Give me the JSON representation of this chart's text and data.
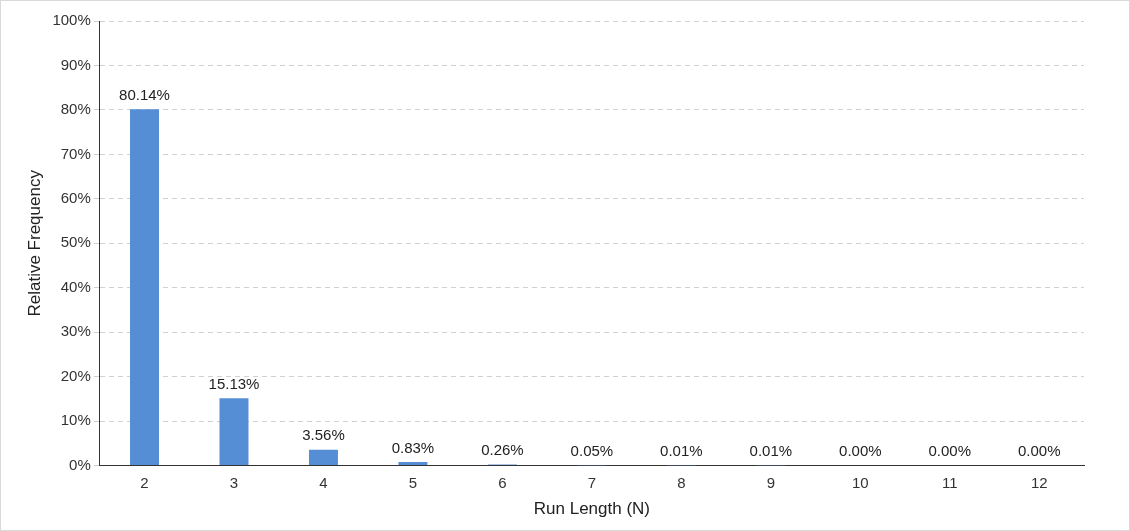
{
  "chart_data": {
    "type": "bar",
    "xlabel": "Run Length (N)",
    "ylabel": "Relative Frequency",
    "categories": [
      "2",
      "3",
      "4",
      "5",
      "6",
      "7",
      "8",
      "9",
      "10",
      "11",
      "12"
    ],
    "values": [
      80.14,
      15.13,
      3.56,
      0.83,
      0.26,
      0.05,
      0.01,
      0.01,
      0,
      0,
      0
    ],
    "value_labels": [
      "80.14%",
      "15.13%",
      "3.56%",
      "0.83%",
      "0.26%",
      "0.05%",
      "0.01%",
      "0.01%",
      "0.00%",
      "0.00%",
      "0.00%"
    ],
    "color": "#558ed5",
    "ylim": [
      0,
      100
    ],
    "yticks": [
      {
        "value": 0,
        "label": "0%"
      },
      {
        "value": 10,
        "label": "10%"
      },
      {
        "value": 20,
        "label": "20%"
      },
      {
        "value": 30,
        "label": "30%"
      },
      {
        "value": 40,
        "label": "40%"
      },
      {
        "value": 50,
        "label": "50%"
      },
      {
        "value": 60,
        "label": "60%"
      },
      {
        "value": 70,
        "label": "70%"
      },
      {
        "value": 80,
        "label": "80%"
      },
      {
        "value": 90,
        "label": "90%"
      },
      {
        "value": 100,
        "label": "100%"
      }
    ],
    "grid": "y",
    "legend": false
  }
}
